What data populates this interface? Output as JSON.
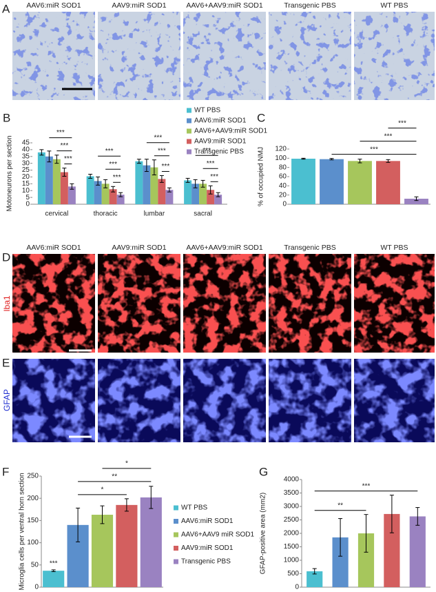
{
  "micrographs": {
    "panels": [
      {
        "label": "A",
        "titles": [
          "AAV6:miR SOD1",
          "AAV9:miR SOD1",
          "AAV6+AAV9:miR SOD1",
          "Transgenic PBS",
          "WT PBS"
        ]
      },
      {
        "label": "D",
        "titles": [
          "AAV6:miR SOD1",
          "AAV9:miR SOD1",
          "AAV6+AAV9:miR SOD1",
          "Transgenic PBS",
          "WT PBS"
        ],
        "row_label": "Iba1"
      },
      {
        "label": "E",
        "row_label": "GFAP"
      }
    ]
  },
  "chart_data": [
    {
      "type": "bar",
      "panel": "B",
      "ylabel": "Motoneurons per section",
      "categories": [
        "cervical",
        "thoracic",
        "lumbar",
        "sacral"
      ],
      "series": [
        {
          "name": "WT PBS",
          "color": "#4bbfd0",
          "values": [
            38,
            20.5,
            31.5,
            17.5
          ],
          "errors": [
            2,
            1.5,
            1.5,
            1.5
          ]
        },
        {
          "name": "AAV6:miR SOD1",
          "color": "#5b8fcc",
          "values": [
            35,
            17,
            28.5,
            15
          ],
          "errors": [
            4,
            3,
            4.5,
            3
          ]
        },
        {
          "name": "AAV6+AAV9:miR SOD1",
          "color": "#a6c65c",
          "values": [
            33,
            15,
            27,
            15
          ],
          "errors": [
            3,
            3,
            5.5,
            2.5
          ]
        },
        {
          "name": "AAV9:miR SOD1",
          "color": "#d35f5f",
          "values": [
            23.5,
            11,
            18.5,
            10.5
          ],
          "errors": [
            3,
            2,
            2.5,
            3
          ]
        },
        {
          "name": "Transgenic PBS",
          "color": "#9a82c1",
          "values": [
            13,
            7,
            10.5,
            7
          ],
          "errors": [
            2,
            1.5,
            1.5,
            1.5
          ]
        }
      ],
      "ylim": [
        0,
        45
      ],
      "yticks": [
        0,
        5,
        10,
        15,
        20,
        25,
        30,
        35,
        40,
        45
      ],
      "legend": "top-right",
      "brackets": [
        [
          {
            "label": "***",
            "from": 3,
            "to": 4
          },
          {
            "label": "***",
            "from": 2,
            "to": 4
          },
          {
            "label": "***",
            "from": 1,
            "to": 4
          }
        ],
        [
          {
            "label": "***",
            "from": 3,
            "to": 4
          },
          {
            "label": "***",
            "from": 2,
            "to": 4
          },
          {
            "label": "***",
            "from": 1,
            "to": 4
          }
        ],
        [
          {
            "label": "***",
            "from": 3,
            "to": 4
          },
          {
            "label": "***",
            "from": 2,
            "to": 4
          },
          {
            "label": "***",
            "from": 1,
            "to": 4
          }
        ],
        [
          {
            "label": "***",
            "from": 3,
            "to": 4
          },
          {
            "label": "***",
            "from": 2,
            "to": 4
          },
          {
            "label": "***",
            "from": 1,
            "to": 4
          }
        ]
      ]
    },
    {
      "type": "bar",
      "panel": "C",
      "ylabel": "% of occupied NMJ",
      "categories": [
        null,
        null,
        null,
        null,
        null
      ],
      "values": [
        99,
        98,
        94,
        94,
        12
      ],
      "errors": [
        1,
        1.5,
        4,
        3,
        4
      ],
      "colors": [
        "#4bbfd0",
        "#5b8fcc",
        "#a6c65c",
        "#d35f5f",
        "#9a82c1"
      ],
      "ylim": [
        0,
        120
      ],
      "yticks": [
        0,
        20,
        40,
        60,
        80,
        100,
        120
      ],
      "brackets": [
        {
          "label": "***",
          "from": 1,
          "to": 4
        },
        {
          "label": "***",
          "from": 2,
          "to": 4
        },
        {
          "label": "***",
          "from": 3,
          "to": 4
        }
      ]
    },
    {
      "type": "bar",
      "panel": "F",
      "ylabel": "Microglia cells per ventral horn section",
      "categories": [
        null,
        null,
        null,
        null,
        null
      ],
      "values": [
        37,
        140,
        163,
        185,
        202
      ],
      "errors": [
        2,
        38,
        20,
        14,
        25
      ],
      "colors": [
        "#4bbfd0",
        "#5b8fcc",
        "#a6c65c",
        "#d35f5f",
        "#9a82c1"
      ],
      "legend_labels": [
        "WT PBS",
        "AAV6:miR SOD1",
        "AAV6+AAV9 miR SOD1",
        "AAV9:miR SOD1",
        "Transgenic PBS"
      ],
      "legend": "right",
      "ylim": [
        0,
        250
      ],
      "yticks": [
        0,
        50,
        100,
        150,
        200,
        250
      ],
      "marks": [
        {
          "label": "***",
          "bar": 0
        }
      ],
      "brackets": [
        {
          "label": "*",
          "from": 1,
          "to": 3
        },
        {
          "label": "**",
          "from": 1,
          "to": 4
        },
        {
          "label": "*",
          "from": 2,
          "to": 4
        }
      ]
    },
    {
      "type": "bar",
      "panel": "G",
      "ylabel": "GFAP-positive area (mm2)",
      "categories": [
        null,
        null,
        null,
        null,
        null
      ],
      "values": [
        590,
        1850,
        2000,
        2720,
        2630
      ],
      "errors": [
        100,
        700,
        700,
        700,
        330
      ],
      "colors": [
        "#4bbfd0",
        "#5b8fcc",
        "#a6c65c",
        "#d35f5f",
        "#9a82c1"
      ],
      "ylim": [
        0,
        4000
      ],
      "yticks": [
        0,
        500,
        1000,
        1500,
        2000,
        2500,
        3000,
        3500,
        4000
      ],
      "brackets": [
        {
          "label": "**",
          "from": 0,
          "to": 2
        },
        {
          "label": "***",
          "from": 0,
          "to": 4
        }
      ]
    }
  ]
}
